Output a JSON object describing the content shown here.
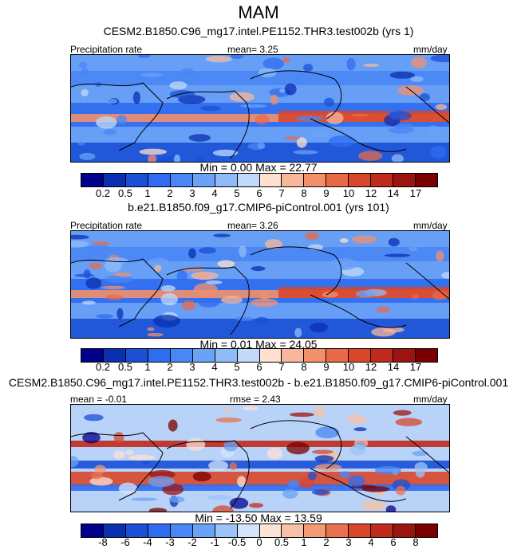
{
  "title": "MAM",
  "panels": [
    {
      "title": "CESM2.B1850.C96_mg17.intel.PE1152.THR3.test002b (yrs 1)",
      "left_label": "Precipitation rate",
      "center_label": "mean=   3.25",
      "right_label": "mm/day",
      "min_max": "Min =   0.00 Max =  22.77",
      "colorbar_ticks": [
        "0.2",
        "0.5",
        "1",
        "2",
        "3",
        "4",
        "5",
        "6",
        "7",
        "8",
        "9",
        "10",
        "12",
        "14",
        "17"
      ]
    },
    {
      "title": "b.e21.B1850.f09_g17.CMIP6-piControl.001 (yrs 101)",
      "left_label": "Precipitation rate",
      "center_label": "mean=   3.26",
      "right_label": "mm/day",
      "min_max": "Min =   0.01 Max =  24.05",
      "colorbar_ticks": [
        "0.2",
        "0.5",
        "1",
        "2",
        "3",
        "4",
        "5",
        "6",
        "7",
        "8",
        "9",
        "10",
        "12",
        "14",
        "17"
      ]
    },
    {
      "title": "CESM2.B1850.C96_mg17.intel.PE1152.THR3.test002b - b.e21.B1850.f09_g17.CMIP6-piControl.001",
      "left_label": "mean =  -0.01",
      "center_label": "rmse =   2.43",
      "right_label": "mm/day",
      "min_max": "Min = -13.50 Max =  13.59",
      "colorbar_ticks": [
        "-8",
        "-6",
        "-4",
        "-3",
        "-2",
        "-1",
        "-0.5",
        "0",
        "0.5",
        "1",
        "2",
        "3",
        "4",
        "6",
        "8"
      ]
    }
  ],
  "chart_data": [
    {
      "type": "heatmap",
      "title": "CESM2.B1850.C96_mg17.intel.PE1152.THR3.test002b (yrs 1)",
      "variable": "Precipitation rate",
      "units": "mm/day",
      "mean": 3.25,
      "min": 0.0,
      "max": 22.77,
      "levels": [
        0.2,
        0.5,
        1,
        2,
        3,
        4,
        5,
        6,
        7,
        8,
        9,
        10,
        12,
        14,
        17
      ],
      "colors": [
        "#00008b",
        "#0a2fb0",
        "#1a4fd6",
        "#2f6cf0",
        "#4a86f5",
        "#6aa2f7",
        "#8fbcf8",
        "#c2d9f9",
        "#fde0cf",
        "#f8b79a",
        "#f2906c",
        "#e96a48",
        "#d8472c",
        "#c02a1c",
        "#9b1410",
        "#7a0000"
      ]
    },
    {
      "type": "heatmap",
      "title": "b.e21.B1850.f09_g17.CMIP6-piControl.001 (yrs 101)",
      "variable": "Precipitation rate",
      "units": "mm/day",
      "mean": 3.26,
      "min": 0.01,
      "max": 24.05,
      "levels": [
        0.2,
        0.5,
        1,
        2,
        3,
        4,
        5,
        6,
        7,
        8,
        9,
        10,
        12,
        14,
        17
      ],
      "colors": [
        "#00008b",
        "#0a2fb0",
        "#1a4fd6",
        "#2f6cf0",
        "#4a86f5",
        "#6aa2f7",
        "#8fbcf8",
        "#c2d9f9",
        "#fde0cf",
        "#f8b79a",
        "#f2906c",
        "#e96a48",
        "#d8472c",
        "#c02a1c",
        "#9b1410",
        "#7a0000"
      ]
    },
    {
      "type": "heatmap",
      "title": "CESM2.B1850.C96_mg17.intel.PE1152.THR3.test002b - b.e21.B1850.f09_g17.CMIP6-piControl.001",
      "units": "mm/day",
      "mean": -0.01,
      "rmse": 2.43,
      "min": -13.5,
      "max": 13.59,
      "levels": [
        -8,
        -6,
        -4,
        -3,
        -2,
        -1,
        -0.5,
        0,
        0.5,
        1,
        2,
        3,
        4,
        6,
        8
      ],
      "colors": [
        "#00008b",
        "#0a2fb0",
        "#1a4fd6",
        "#2f6cf0",
        "#4a86f5",
        "#6aa2f7",
        "#9cc4f8",
        "#d3e4fa",
        "#fbe3d5",
        "#f8c0a4",
        "#f29a76",
        "#e9714f",
        "#d8472c",
        "#c02a1c",
        "#9b1410",
        "#7a0000"
      ]
    }
  ]
}
